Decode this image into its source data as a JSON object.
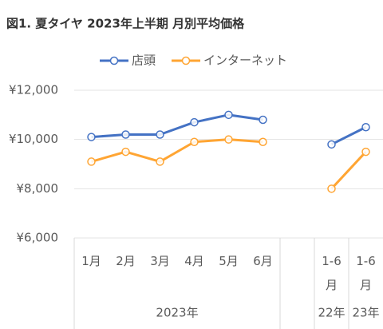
{
  "chart_data": {
    "type": "line",
    "title": "図1. 夏タイヤ 2023年上半期 月別平均価格",
    "categories": [
      "1月",
      "2月",
      "3月",
      "4月",
      "5月",
      "6月",
      null,
      "1-6月",
      "1-6月"
    ],
    "group_labels": [
      "2023年",
      "22年",
      "23年"
    ],
    "series": [
      {
        "name": "店頭",
        "color": "#4472c4",
        "values": [
          10100,
          10200,
          10200,
          10700,
          11000,
          10800,
          null,
          9800,
          10500
        ]
      },
      {
        "name": "インターネット",
        "color": "#ffa533",
        "values": [
          9100,
          9500,
          9100,
          9900,
          10000,
          9900,
          null,
          8000,
          9500
        ]
      }
    ],
    "ylim": [
      6000,
      12000
    ],
    "yticks": [
      {
        "value": 6000,
        "label": "¥6,000"
      },
      {
        "value": 8000,
        "label": "¥8,000"
      },
      {
        "value": 10000,
        "label": "¥10,000"
      },
      {
        "value": 12000,
        "label": "¥12,000"
      }
    ],
    "grid": true,
    "legend": "top"
  }
}
